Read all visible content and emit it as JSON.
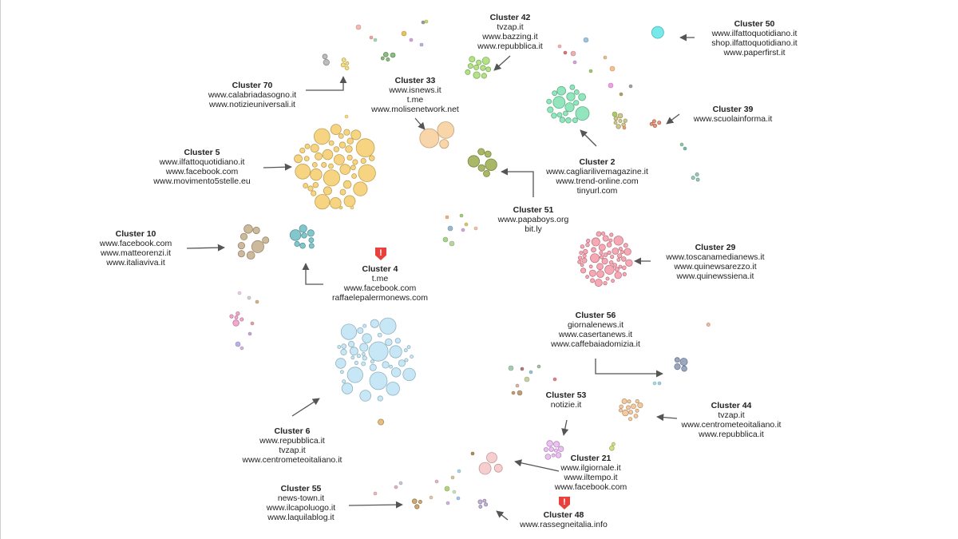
{
  "colors": {
    "yellow": "#f5cc6b",
    "tan": "#c4ad8a",
    "teal": "#6dbdc4",
    "skyblue": "#bde3f5",
    "pink": "#f49aa8",
    "mint": "#7fe0b0",
    "olive": "#9aaa4e",
    "peach": "#f8cf9a",
    "lightgreen": "#a6dd73",
    "cyan": "#5ee6e6",
    "warning": "#e8413c"
  },
  "warning_icon": "shield-alert-icon",
  "clusters": [
    {
      "id": "cluster-70",
      "title": "Cluster 70",
      "domains": [
        "www.calabriadasogno.it",
        "www.notizieuniversali.it"
      ]
    },
    {
      "id": "cluster-33",
      "title": "Cluster 33",
      "domains": [
        "www.isnews.it",
        "t.me",
        "www.molisenetwork.net"
      ]
    },
    {
      "id": "cluster-42",
      "title": "Cluster 42",
      "domains": [
        "tvzap.it",
        "www.bazzing.it",
        "www.repubblica.it"
      ]
    },
    {
      "id": "cluster-50",
      "title": "Cluster 50",
      "domains": [
        "www.ilfattoquotidiano.it",
        "shop.ilfattoquotidiano.it",
        "www.paperfirst.it"
      ]
    },
    {
      "id": "cluster-39",
      "title": "Cluster 39",
      "domains": [
        "www.scuolainforma.it"
      ]
    },
    {
      "id": "cluster-5",
      "title": "Cluster 5",
      "domains": [
        "www.ilfattoquotidiano.it",
        "www.facebook.com",
        "www.movimento5stelle.eu"
      ]
    },
    {
      "id": "cluster-2",
      "title": "Cluster 2",
      "domains": [
        "www.cagliarilivemagazine.it",
        "www.trend-online.com",
        "tinyurl.com"
      ]
    },
    {
      "id": "cluster-51",
      "title": "Cluster 51",
      "domains": [
        "www.papaboys.org",
        "bit.ly"
      ]
    },
    {
      "id": "cluster-10",
      "title": "Cluster 10",
      "domains": [
        "www.facebook.com",
        "www.matteorenzi.it",
        "www.italiaviva.it"
      ]
    },
    {
      "id": "cluster-4",
      "title": "Cluster 4",
      "domains": [
        "t.me",
        "www.facebook.com",
        "raffaelepalermonews.com"
      ],
      "warning": true
    },
    {
      "id": "cluster-29",
      "title": "Cluster 29",
      "domains": [
        "www.toscanamedianews.it",
        "www.quinewsarezzo.it",
        "www.quinewssiena.it"
      ]
    },
    {
      "id": "cluster-56",
      "title": "Cluster 56",
      "domains": [
        "giornalenews.it",
        "www.casertanews.it",
        "www.caffebaiadomizia.it"
      ]
    },
    {
      "id": "cluster-6",
      "title": "Cluster 6",
      "domains": [
        "www.repubblica.it",
        "tvzap.it",
        "www.centrometeoitaliano.it"
      ]
    },
    {
      "id": "cluster-53",
      "title": "Cluster 53",
      "domains": [
        "notizie.it"
      ]
    },
    {
      "id": "cluster-44",
      "title": "Cluster 44",
      "domains": [
        "tvzap.it",
        "www.centrometeoitaliano.it",
        "www.repubblica.it"
      ]
    },
    {
      "id": "cluster-21",
      "title": "Cluster 21",
      "domains": [
        "www.ilgiornale.it",
        "www.iltempo.it",
        "www.facebook.com"
      ]
    },
    {
      "id": "cluster-55",
      "title": "Cluster 55",
      "domains": [
        "news-town.it",
        "www.ilcapoluogo.it",
        "www.laquilablog.it"
      ]
    },
    {
      "id": "cluster-48",
      "title": "Cluster 48",
      "domains": [
        "www.rassegneitalia.info"
      ],
      "warning": true
    }
  ]
}
